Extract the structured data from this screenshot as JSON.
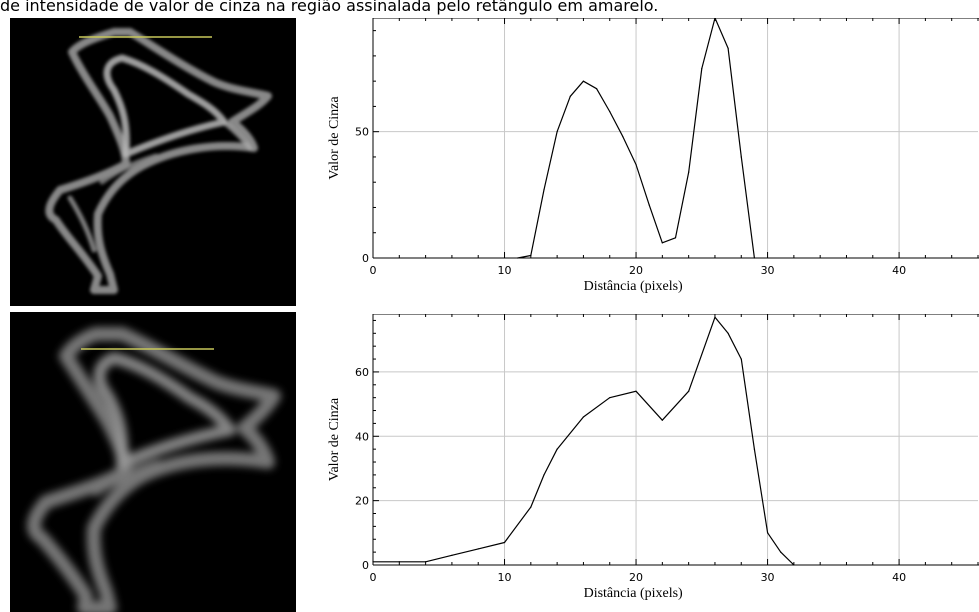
{
  "caption": "de intensidade de valor de cinza na região assinalada pelo retângulo em amarelo.",
  "colors": {
    "profile_line": "#c8c85a",
    "grid": "#c8c8c8",
    "curve": "#000000",
    "image_background": "#000000"
  },
  "images": [
    {
      "name": "original-microscopy-image"
    },
    {
      "name": "blurred-microscopy-image"
    }
  ],
  "chart_data": [
    {
      "type": "line",
      "xlabel": "Distância (pixels)",
      "ylabel": "Valor de Cinza",
      "xlim": [
        0,
        46
      ],
      "ylim": [
        0,
        95
      ],
      "xticks": [
        0,
        10,
        20,
        30,
        40
      ],
      "yticks": [
        0,
        50
      ],
      "grid": true,
      "x": [
        11,
        12,
        13,
        14,
        15,
        16,
        17,
        18,
        19,
        20,
        21,
        22,
        23,
        24,
        25,
        26,
        27,
        28,
        29
      ],
      "y": [
        0,
        1,
        27,
        50,
        64,
        70,
        67,
        58,
        48,
        37,
        21,
        6,
        8,
        34,
        75,
        95,
        83,
        40,
        0
      ]
    },
    {
      "type": "line",
      "xlabel": "Distância (pixels)",
      "ylabel": "Valor de Cinza",
      "xlim": [
        0,
        46
      ],
      "ylim": [
        0,
        78
      ],
      "xticks": [
        0,
        10,
        20,
        30,
        40
      ],
      "yticks": [
        0,
        20,
        40,
        60
      ],
      "grid": true,
      "x": [
        0,
        2,
        4,
        6,
        8,
        10,
        12,
        13,
        14,
        16,
        18,
        20,
        22,
        24,
        26,
        27,
        28,
        29,
        30,
        31,
        32
      ],
      "y": [
        1,
        1,
        1,
        3,
        5,
        7,
        18,
        28,
        36,
        46,
        52,
        54,
        45,
        54,
        77,
        72,
        64,
        36,
        10,
        4,
        0
      ]
    }
  ]
}
